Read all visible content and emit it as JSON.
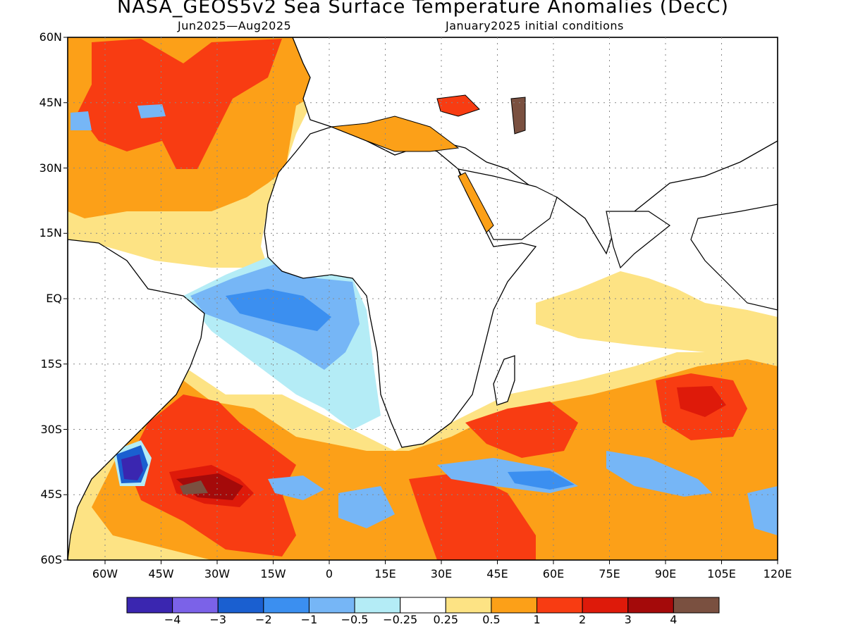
{
  "header": {
    "title": "NASA_GEOS5v2 Sea Surface Temperature Anomalies (DecC)",
    "period": "Jun2025—Aug2025",
    "initial_conditions": "January2025 initial conditions"
  },
  "axes": {
    "lat_labels": [
      "60N",
      "45N",
      "30N",
      "15N",
      "EQ",
      "15S",
      "30S",
      "45S",
      "60S"
    ],
    "lon_labels": [
      "60W",
      "45W",
      "30W",
      "15W",
      "0",
      "15E",
      "30E",
      "45E",
      "60E",
      "75E",
      "90E",
      "105E",
      "120E"
    ],
    "lat_range": [
      -60,
      60
    ],
    "lon_range": [
      -70,
      120
    ],
    "grid": "dotted"
  },
  "colorbar": {
    "colors": [
      "#3a26b0",
      "#7b62e8",
      "#1a5fd0",
      "#3b8ff0",
      "#76b6f6",
      "#b4ecf6",
      "#ffffff",
      "#fde384",
      "#fca018",
      "#f83c12",
      "#de1a0a",
      "#a40a0a",
      "#7a5040"
    ],
    "labels": [
      "−4",
      "−3",
      "−2",
      "−1",
      "−0.5",
      "−0.25",
      "0.25",
      "0.5",
      "1",
      "2",
      "3",
      "4"
    ]
  },
  "regions": [
    {
      "name": "north-atlantic-warm",
      "color": "#fca018"
    },
    {
      "name": "north-atlantic-red",
      "color": "#f83c12"
    },
    {
      "name": "equatorial-atlantic-cool",
      "color": "#76b6f6"
    },
    {
      "name": "south-atlantic-warm",
      "color": "#f83c12"
    },
    {
      "name": "south-indian-warm",
      "color": "#fca018"
    },
    {
      "name": "southern-ocean-cool",
      "color": "#3b8ff0"
    }
  ]
}
